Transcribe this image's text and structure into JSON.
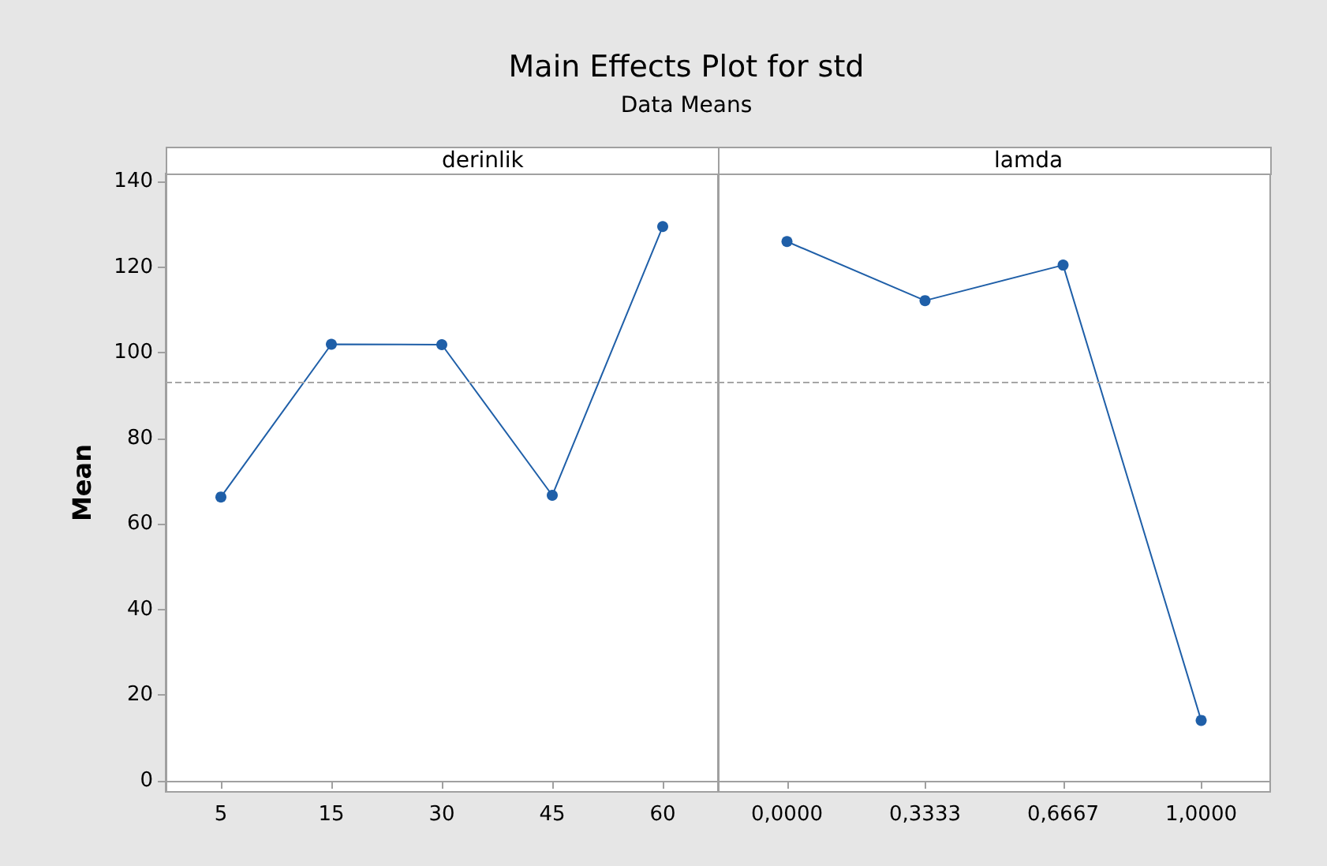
{
  "chart_data": [
    {
      "type": "line",
      "title": "Main Effects Plot for std",
      "subtitle": "Data Means",
      "xlabel": "derinlik",
      "ylabel": "Mean",
      "categories": [
        "5",
        "15",
        "30",
        "45",
        "60"
      ],
      "series": [
        {
          "color": "#1f5fa8",
          "values": [
            66.3,
            102,
            101.9,
            66.7,
            129.5
          ]
        }
      ],
      "ylim": [
        -2.6,
        141.9
      ],
      "yticks": [
        0,
        20,
        40,
        60,
        80,
        100,
        120,
        140
      ],
      "marker": "circle",
      "line_style": "solid",
      "ref_lines": [
        {
          "axis": "y",
          "value": 93.3,
          "color": "#a6a6a6",
          "line_style": "dashed"
        }
      ]
    },
    {
      "type": "line",
      "xlabel": "lamda",
      "categories": [
        "0,0000",
        "0,3333",
        "0,6667",
        "1,0000"
      ],
      "series": [
        {
          "color": "#1f5fa8",
          "values": [
            126,
            112.2,
            120.5,
            14.1
          ]
        }
      ],
      "ylim": [
        -2.6,
        141.9
      ],
      "yticks": [
        0,
        20,
        40,
        60,
        80,
        100,
        120,
        140
      ],
      "tick_labels": "x",
      "marker": "circle",
      "line_style": "solid",
      "ref_lines": [
        {
          "axis": "y",
          "value": 93.3,
          "color": "#a6a6a6",
          "line_style": "dashed"
        }
      ]
    }
  ]
}
